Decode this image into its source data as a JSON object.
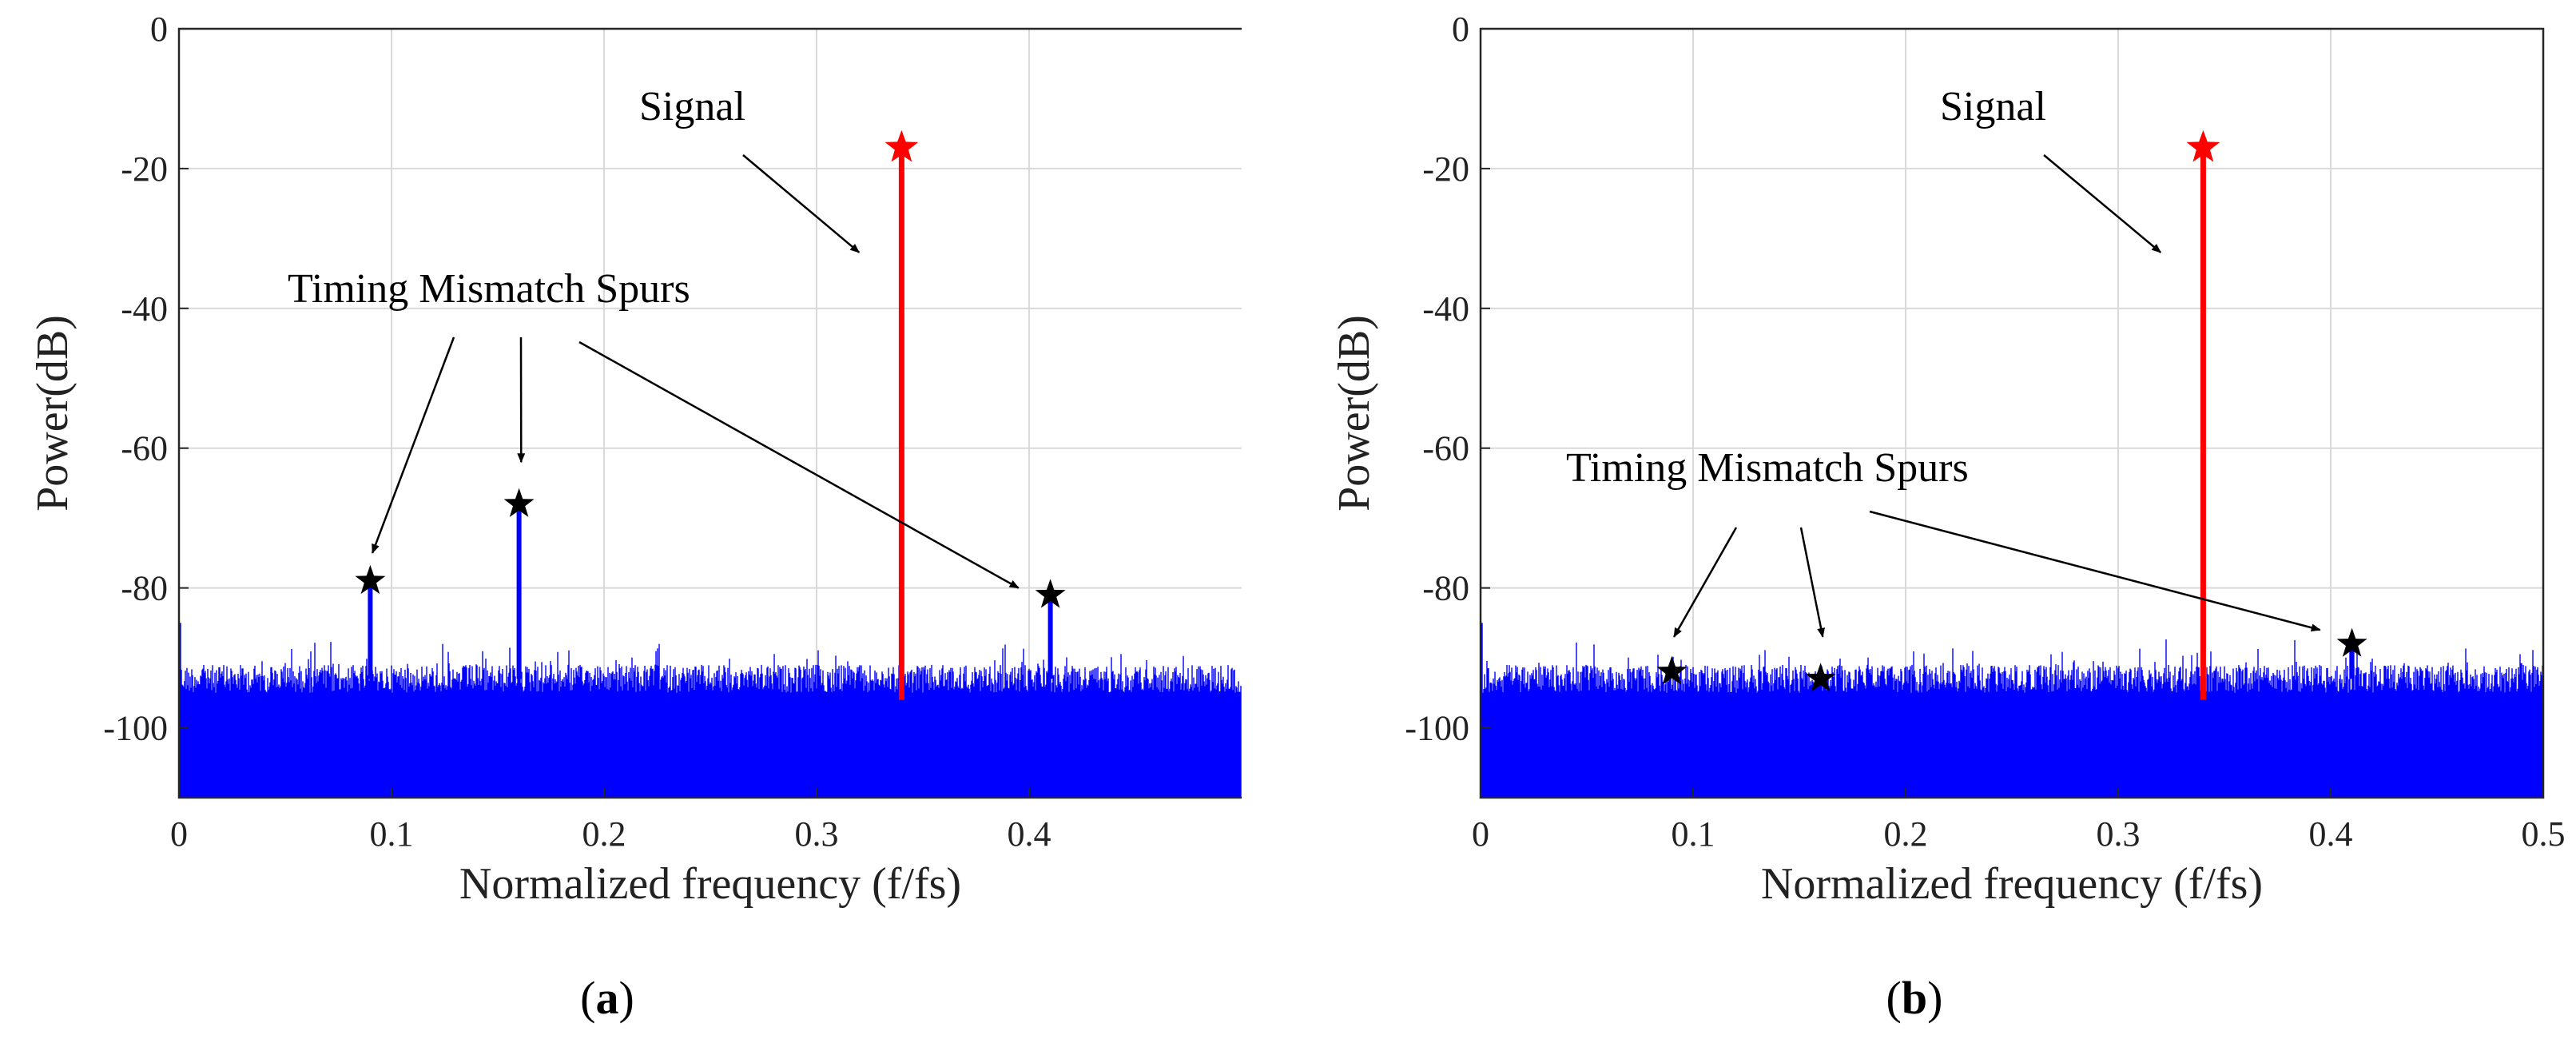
{
  "chart_data": [
    {
      "type": "line",
      "panel_label": "a",
      "xlabel": "Normalized frequency (f/fs)",
      "ylabel": "Power(dB)",
      "xlim": [
        0,
        0.5
      ],
      "ylim": [
        -110,
        0
      ],
      "xticks": [
        0,
        0.1,
        0.2,
        0.3,
        0.4
      ],
      "xtick_labels": [
        "0",
        "0.1",
        "0.2",
        "0.3",
        "0.4"
      ],
      "yticks": [
        0,
        -20,
        -40,
        -60,
        -80,
        -100
      ],
      "ytick_labels": [
        "0",
        "-20",
        "-40",
        "-60",
        "-80",
        "-100"
      ],
      "grid": true,
      "noise_floor_db": [
        -110,
        -91
      ],
      "signal": {
        "x": 0.34,
        "y": -17,
        "base": -96,
        "color": "#ff0000"
      },
      "spurs": [
        {
          "x": 0.09,
          "y": -79
        },
        {
          "x": 0.16,
          "y": -68
        },
        {
          "x": 0.41,
          "y": -81
        }
      ],
      "annotations": [
        {
          "text": "Signal",
          "target": [
            0.32,
            -32
          ]
        },
        {
          "text": "Timing Mismatch Spurs",
          "targets": [
            [
              0.091,
              -75
            ],
            [
              0.161,
              -62
            ],
            [
              0.395,
              -80
            ]
          ]
        }
      ]
    },
    {
      "type": "line",
      "panel_label": "b",
      "xlabel": "Normalized frequency (f/fs)",
      "ylabel": "Power(dB)",
      "xlim": [
        0,
        0.5
      ],
      "ylim": [
        -110,
        0
      ],
      "xticks": [
        0,
        0.1,
        0.2,
        0.3,
        0.4,
        0.5
      ],
      "xtick_labels": [
        "0",
        "0.1",
        "0.2",
        "0.3",
        "0.4",
        "0.5"
      ],
      "yticks": [
        0,
        -20,
        -40,
        -60,
        -80,
        -100
      ],
      "ytick_labels": [
        "0",
        "-20",
        "-40",
        "-60",
        "-80",
        "-100"
      ],
      "grid": true,
      "noise_floor_db": [
        -110,
        -91
      ],
      "signal": {
        "x": 0.34,
        "y": -17,
        "base": -96,
        "color": "#ff0000"
      },
      "spurs": [
        {
          "x": 0.09,
          "y": -92
        },
        {
          "x": 0.16,
          "y": -93
        },
        {
          "x": 0.41,
          "y": -88
        }
      ],
      "annotations": [
        {
          "text": "Signal",
          "target": [
            0.32,
            -32
          ]
        },
        {
          "text": "Timing Mismatch Spurs",
          "targets": [
            [
              0.091,
              -87
            ],
            [
              0.161,
              -87
            ],
            [
              0.395,
              -86
            ]
          ]
        }
      ]
    }
  ],
  "colors": {
    "noise": "#0000ff",
    "signal": "#ff0000",
    "spur_marker": "#000000"
  }
}
